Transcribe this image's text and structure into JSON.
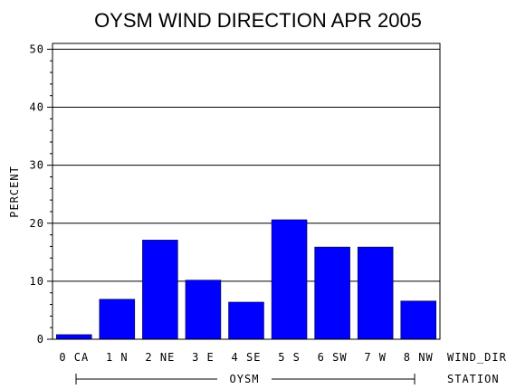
{
  "chart_data": {
    "type": "bar",
    "title": "OYSM WIND DIRECTION APR 2005",
    "ylabel": "PERCENT",
    "xlabel": "WIND_DIR",
    "group_axis_label": "STATION",
    "group_label": "OYSM",
    "categories": [
      "0 CA",
      "1 N",
      "2 NE",
      "3 E",
      "4 SE",
      "5 S",
      "6 SW",
      "7 W",
      "8 NW"
    ],
    "values": [
      0.8,
      6.9,
      17.1,
      10.2,
      6.4,
      20.6,
      15.9,
      15.9,
      6.6
    ],
    "ylim": [
      0,
      51
    ],
    "yticks": [
      0,
      10,
      20,
      30,
      40,
      50
    ],
    "grid": true,
    "bar_color": "#0000ff"
  }
}
